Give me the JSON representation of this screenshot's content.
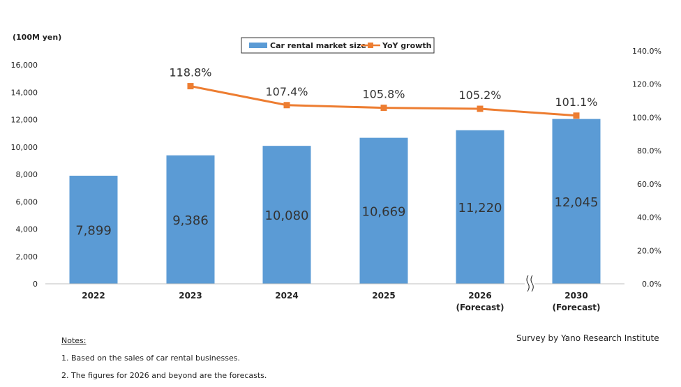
{
  "chart_data": {
    "type": "bar",
    "unit_label": "(100M yen)",
    "categories": [
      "2022",
      "2023",
      "2024",
      "2025",
      "2026",
      "2030"
    ],
    "category_sublabels": [
      "",
      "",
      "",
      "",
      "(Forecast)",
      "(Forecast)"
    ],
    "series": [
      {
        "name": "Car rental market size",
        "type": "bar",
        "axis": "left",
        "color": "#5b9bd5",
        "values": [
          7899,
          9386,
          10080,
          10669,
          11220,
          12045
        ],
        "labels": [
          "7,899",
          "9,386",
          "10,080",
          "10,669",
          "11,220",
          "12,045"
        ]
      },
      {
        "name": "YoY growth",
        "type": "line",
        "axis": "right",
        "color": "#ed7d31",
        "values": [
          null,
          118.8,
          107.4,
          105.8,
          105.2,
          101.1
        ],
        "labels": [
          "",
          "118.8%",
          "107.4%",
          "105.8%",
          "105.2%",
          "101.1%"
        ]
      }
    ],
    "y_left": {
      "range": [
        0,
        16000
      ],
      "ticks": [
        0,
        2000,
        4000,
        6000,
        8000,
        10000,
        12000,
        14000,
        16000
      ],
      "tick_labels": [
        "0",
        "2,000",
        "4,000",
        "6,000",
        "8,000",
        "10,000",
        "12,000",
        "14,000",
        "16,000"
      ]
    },
    "y_right": {
      "range": [
        0,
        140
      ],
      "ticks": [
        0,
        20,
        40,
        60,
        80,
        100,
        120,
        140
      ],
      "tick_labels": [
        "0.0%",
        "20.0%",
        "40.0%",
        "60.0%",
        "80.0%",
        "100.0%",
        "120.0%",
        "140.0%"
      ]
    },
    "axis_break": "between 2026 and 2030",
    "grid": false,
    "legend": "top-center"
  },
  "notes": {
    "heading": "Notes:",
    "lines": [
      "1. Based on the sales of car rental businesses.",
      "2. The figures for 2026 and beyond are the forecasts."
    ]
  },
  "source": "Survey by Yano Research Institute"
}
